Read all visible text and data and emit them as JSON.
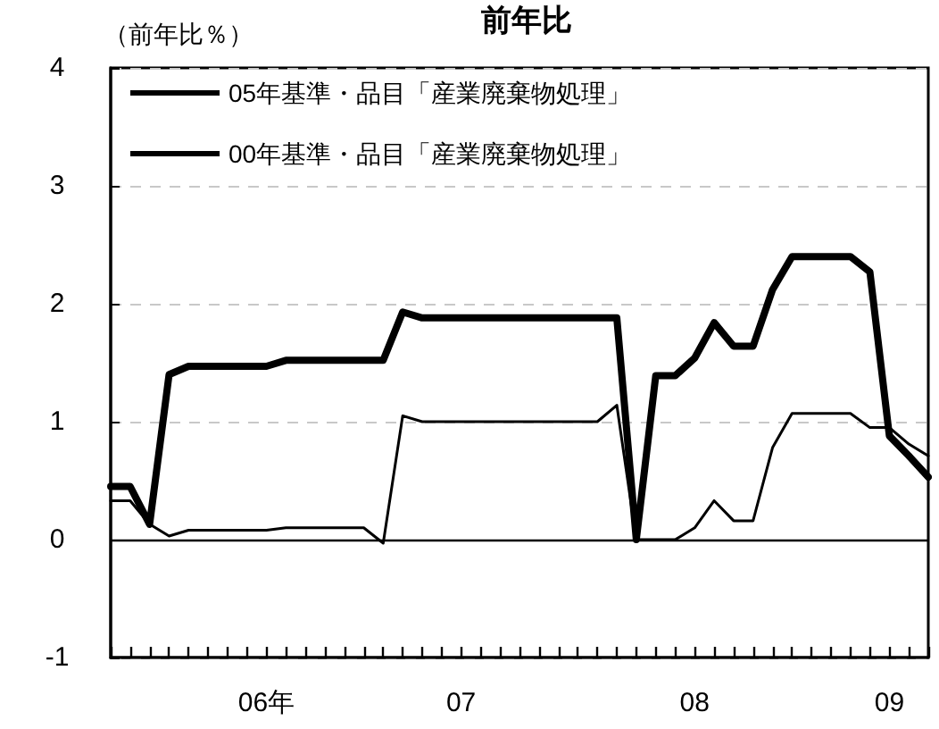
{
  "chart_data": {
    "type": "line",
    "title": "前年比",
    "ylabel": "（前年比％）",
    "categories": [
      null,
      null,
      null,
      null,
      null,
      null,
      null,
      null,
      "06年",
      null,
      null,
      null,
      null,
      null,
      null,
      null,
      null,
      null,
      "07",
      null,
      null,
      null,
      null,
      null,
      null,
      null,
      null,
      null,
      null,
      null,
      "08",
      null,
      null,
      null,
      null,
      null,
      null,
      null,
      null,
      null,
      "09",
      null,
      null
    ],
    "series": [
      {
        "name": "05年基準・品目「産業廃棄物処理」",
        "color": "#000000",
        "values": [
          0.45,
          0.45,
          0.13,
          1.4,
          1.47,
          1.47,
          1.47,
          1.47,
          1.47,
          1.52,
          1.52,
          1.52,
          1.52,
          1.52,
          1.52,
          1.93,
          1.88,
          1.88,
          1.88,
          1.88,
          1.88,
          1.88,
          1.88,
          1.88,
          1.88,
          1.88,
          1.88,
          0,
          1.39,
          1.39,
          1.54,
          1.84,
          1.64,
          1.64,
          2.12,
          2.4,
          2.4,
          2.4,
          2.4,
          2.27,
          0.88,
          0.71,
          0.53
        ]
      },
      {
        "name": "00年基準・品目「産業廃棄物処理」",
        "color": "#000000",
        "values": [
          0.33,
          0.33,
          0.13,
          0.03,
          0.08,
          0.08,
          0.08,
          0.08,
          0.08,
          0.1,
          0.1,
          0.1,
          0.1,
          0.1,
          -0.03,
          1.05,
          1.0,
          1.0,
          1.0,
          1.0,
          1.0,
          1.0,
          1.0,
          1.0,
          1.0,
          1.0,
          1.14,
          0,
          0,
          0,
          0.1,
          0.33,
          0.16,
          0.16,
          0.78,
          1.07,
          1.07,
          1.07,
          1.07,
          0.95,
          0.95,
          0.81,
          0.71
        ]
      }
    ],
    "ylim": [
      -1,
      4
    ],
    "yticks": [
      -1,
      0,
      1,
      2,
      3,
      4
    ],
    "grid": "y",
    "legend": "top left",
    "marker": "none",
    "line_style": "solid",
    "ref_lines": [
      {
        "axis": "y",
        "value": 0,
        "color": "#000000",
        "line_style": "solid"
      }
    ]
  }
}
